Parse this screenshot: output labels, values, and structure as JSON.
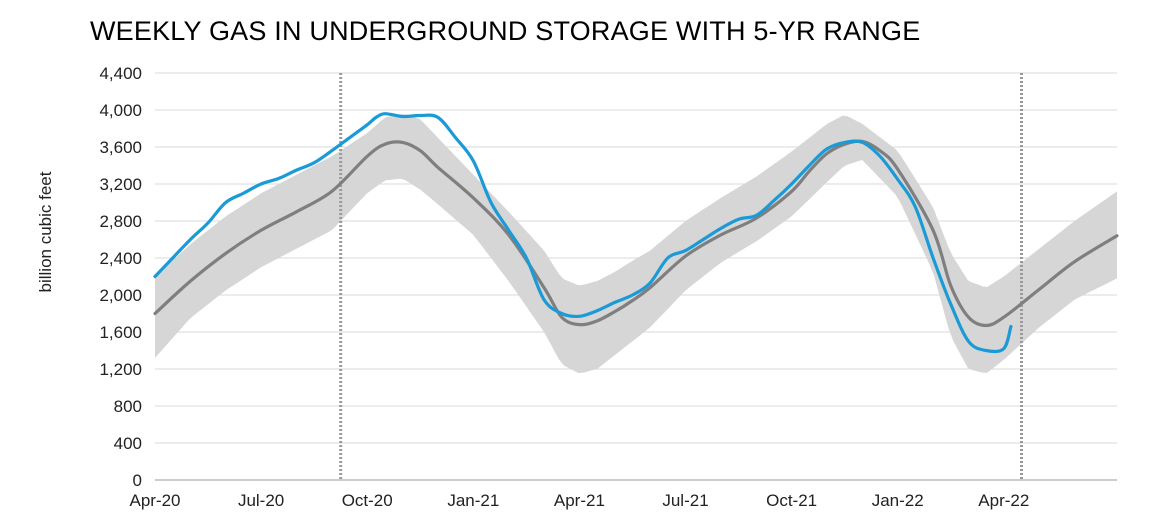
{
  "chart_data": {
    "type": "line",
    "title": "WEEKLY GAS IN UNDERGROUND STORAGE WITH 5-YR RANGE",
    "xlabel": "",
    "ylabel": "billion cubic feet",
    "ylim": [
      0,
      4400
    ],
    "yticks": [
      "0",
      "400",
      "800",
      "1,200",
      "1,600",
      "2,000",
      "2,400",
      "2,800",
      "3,200",
      "3,600",
      "4,000",
      "4,400"
    ],
    "xticks": [
      "Apr-20",
      "Jul-20",
      "Oct-20",
      "Jan-21",
      "Apr-21",
      "Jul-21",
      "Oct-21",
      "Jan-22",
      "Apr-22"
    ],
    "x_unit": "months since Apr-20",
    "xlim": [
      0,
      27.2
    ],
    "grid": "horizontal",
    "vertical_markers": [
      5.25,
      24.5
    ],
    "colors": {
      "storage": "#1a9ad6",
      "average": "#7f7f7f",
      "range": "#d6d6d6",
      "grid": "#d9d9d9"
    },
    "series": [
      {
        "name": "",
        "role": "storage",
        "x": [
          0,
          0.5,
          1,
          1.5,
          2,
          2.5,
          3,
          3.5,
          4,
          4.5,
          5,
          5.5,
          6,
          6.25,
          6.5,
          7,
          7.5,
          8,
          8.5,
          9,
          9.5,
          10,
          10.5,
          11,
          11.5,
          12,
          12.5,
          13,
          13.5,
          14,
          14.5,
          15,
          15.5,
          16,
          16.5,
          17,
          17.5,
          18,
          18.5,
          19,
          19.5,
          20,
          20.5,
          21,
          21.5,
          22,
          22.5,
          23,
          23.5,
          24,
          24.2
        ],
        "y": [
          2200,
          2400,
          2600,
          2780,
          3000,
          3100,
          3200,
          3260,
          3350,
          3430,
          3560,
          3700,
          3840,
          3920,
          3960,
          3930,
          3940,
          3920,
          3700,
          3450,
          3000,
          2700,
          2400,
          1950,
          1800,
          1770,
          1830,
          1920,
          2000,
          2130,
          2400,
          2480,
          2600,
          2720,
          2820,
          2860,
          3020,
          3200,
          3400,
          3580,
          3650,
          3650,
          3500,
          3250,
          2950,
          2400,
          1900,
          1500,
          1400,
          1420,
          1660
        ]
      },
      {
        "name": "",
        "role": "5-yr average",
        "x": [
          0,
          1,
          2,
          3,
          4,
          5,
          6,
          6.5,
          7,
          7.5,
          8,
          9,
          10,
          11,
          11.5,
          12,
          12.5,
          13,
          13.5,
          14,
          15,
          16,
          17,
          18,
          18.5,
          19,
          19.5,
          20,
          20.5,
          21,
          22,
          22.5,
          23,
          23.5,
          24,
          25,
          26,
          27.2
        ],
        "y": [
          1800,
          2150,
          2450,
          2700,
          2900,
          3120,
          3500,
          3630,
          3650,
          3560,
          3380,
          3050,
          2650,
          2080,
          1760,
          1680,
          1720,
          1820,
          1940,
          2080,
          2420,
          2650,
          2830,
          3120,
          3340,
          3530,
          3630,
          3660,
          3560,
          3360,
          2700,
          2100,
          1760,
          1670,
          1760,
          2060,
          2360,
          2640
        ]
      },
      {
        "name": "",
        "role": "5-yr range upper",
        "x": [
          0,
          1,
          2,
          3,
          4,
          5,
          6,
          6.5,
          7,
          7.5,
          8,
          9,
          10,
          11,
          11.5,
          12,
          12.5,
          13,
          13.5,
          14,
          15,
          16,
          17,
          18,
          19,
          19.5,
          20,
          21,
          22,
          22.5,
          23,
          23.5,
          24,
          25,
          26,
          27.2
        ],
        "y": [
          2200,
          2550,
          2850,
          3100,
          3300,
          3500,
          3750,
          3920,
          3960,
          3900,
          3700,
          3300,
          2900,
          2480,
          2180,
          2100,
          2150,
          2250,
          2370,
          2480,
          2800,
          3050,
          3280,
          3550,
          3850,
          3950,
          3850,
          3560,
          2950,
          2450,
          2150,
          2080,
          2200,
          2500,
          2800,
          3120
        ]
      },
      {
        "name": "",
        "role": "5-yr range lower",
        "x": [
          0,
          1,
          2,
          3,
          4,
          5,
          6,
          6.5,
          7,
          7.5,
          8,
          9,
          10,
          11,
          11.5,
          12,
          12.5,
          13,
          13.5,
          14,
          15,
          16,
          17,
          18,
          19,
          19.5,
          20,
          21,
          22,
          22.5,
          23,
          23.5,
          24,
          25,
          26,
          27.2
        ],
        "y": [
          1320,
          1750,
          2050,
          2300,
          2500,
          2700,
          3100,
          3240,
          3260,
          3140,
          2980,
          2650,
          2150,
          1600,
          1250,
          1150,
          1200,
          1350,
          1500,
          1650,
          2050,
          2350,
          2580,
          2850,
          3220,
          3400,
          3460,
          3060,
          2250,
          1550,
          1200,
          1150,
          1300,
          1650,
          1950,
          2180
        ]
      }
    ]
  }
}
